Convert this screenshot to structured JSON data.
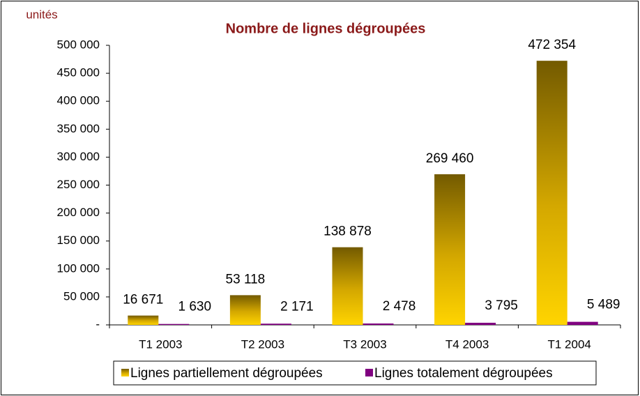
{
  "chart_data": {
    "type": "bar",
    "title": "Nombre de lignes dégroupées",
    "y_label": "unités",
    "categories": [
      "T1 2003",
      "T2 2003",
      "T3 2003",
      "T4 2003",
      "T1 2004"
    ],
    "series": [
      {
        "name": "Lignes partiellement dégroupées",
        "color": "#c9a200",
        "values": [
          16671,
          53118,
          138878,
          269460,
          472354
        ],
        "value_labels": [
          "16 671",
          "53 118",
          "138 878",
          "269 460",
          "472 354"
        ]
      },
      {
        "name": "Lignes totalement dégroupées",
        "color": "#800080",
        "values": [
          1630,
          2171,
          2478,
          3795,
          5489
        ],
        "value_labels": [
          "1 630",
          "2 171",
          "2 478",
          "3 795",
          "5 489"
        ]
      }
    ],
    "ylim": [
      0,
      500000
    ],
    "yticks": [
      {
        "value": 0,
        "label": "-"
      },
      {
        "value": 50000,
        "label": "50 000"
      },
      {
        "value": 100000,
        "label": "100 000"
      },
      {
        "value": 150000,
        "label": "150 000"
      },
      {
        "value": 200000,
        "label": "200 000"
      },
      {
        "value": 250000,
        "label": "250 000"
      },
      {
        "value": 300000,
        "label": "300 000"
      },
      {
        "value": 350000,
        "label": "350 000"
      },
      {
        "value": 400000,
        "label": "400 000"
      },
      {
        "value": 450000,
        "label": "450 000"
      },
      {
        "value": 500000,
        "label": "500 000"
      }
    ],
    "legend": "bottom"
  }
}
